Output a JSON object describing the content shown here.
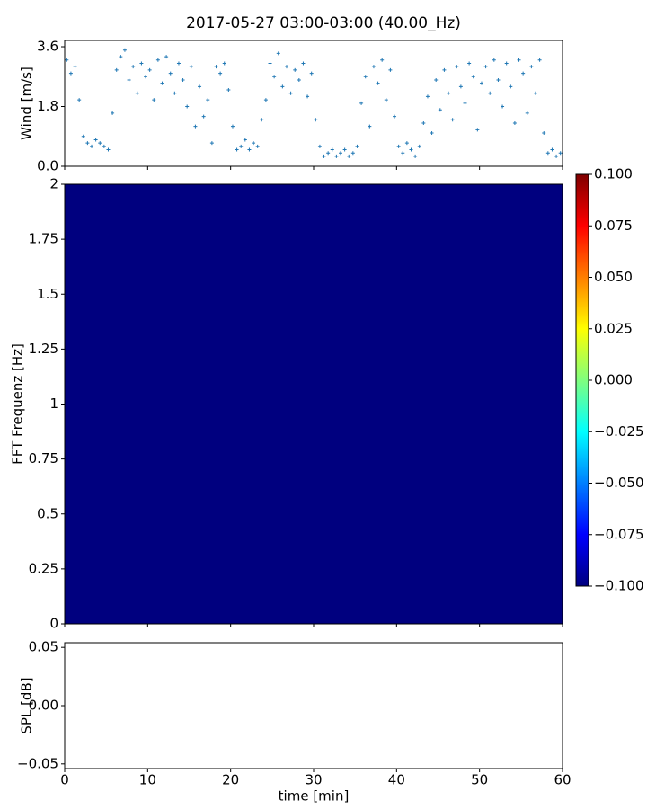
{
  "title": "2017-05-27 03:00-03:00 (40.00_Hz)",
  "chart_data": [
    {
      "type": "scatter",
      "ylabel": "Wind [m/s]",
      "color": "#1f77b4",
      "xlim": [
        0,
        60
      ],
      "ylim": [
        0,
        3.79
      ],
      "yticks": [
        {
          "value": 0,
          "label": "0.0"
        },
        1.8,
        3.6
      ],
      "x": [
        0.25,
        0.75,
        1.25,
        1.75,
        2.25,
        2.75,
        3.25,
        3.75,
        4.25,
        4.75,
        5.25,
        5.75,
        6.25,
        6.75,
        7.25,
        7.75,
        8.25,
        8.75,
        9.25,
        9.75,
        10.25,
        10.75,
        11.25,
        11.75,
        12.25,
        12.75,
        13.25,
        13.75,
        14.25,
        14.75,
        15.25,
        15.75,
        16.25,
        16.75,
        17.25,
        17.75,
        18.25,
        18.75,
        19.25,
        19.75,
        20.25,
        20.75,
        21.25,
        21.75,
        22.25,
        22.75,
        23.25,
        23.75,
        24.25,
        24.75,
        25.25,
        25.75,
        26.25,
        26.75,
        27.25,
        27.75,
        28.25,
        28.75,
        29.25,
        29.75,
        30.25,
        30.75,
        31.25,
        31.75,
        32.25,
        32.75,
        33.25,
        33.75,
        34.25,
        34.75,
        35.25,
        35.75,
        36.25,
        36.75,
        37.25,
        37.75,
        38.25,
        38.75,
        39.25,
        39.75,
        40.25,
        40.75,
        41.25,
        41.75,
        42.25,
        42.75,
        43.25,
        43.75,
        44.25,
        44.75,
        45.25,
        45.75,
        46.25,
        46.75,
        47.25,
        47.75,
        48.25,
        48.75,
        49.25,
        49.75,
        50.25,
        50.75,
        51.25,
        51.75,
        52.25,
        52.75,
        53.25,
        53.75,
        54.25,
        54.75,
        55.25,
        55.75,
        56.25,
        56.75,
        57.25,
        57.75,
        58.25,
        58.75,
        59.25,
        59.75
      ],
      "y": [
        3.2,
        2.8,
        3.0,
        2.0,
        0.9,
        0.7,
        0.6,
        0.8,
        0.7,
        0.6,
        0.5,
        1.6,
        2.9,
        3.3,
        3.5,
        2.6,
        3.0,
        2.2,
        3.1,
        2.7,
        2.9,
        2.0,
        3.2,
        2.5,
        3.3,
        2.8,
        2.2,
        3.1,
        2.6,
        1.8,
        3.0,
        1.2,
        2.4,
        1.5,
        2.0,
        0.7,
        3.0,
        2.8,
        3.1,
        2.3,
        1.2,
        0.5,
        0.6,
        0.8,
        0.5,
        0.7,
        0.6,
        1.4,
        2.0,
        3.1,
        2.7,
        3.4,
        2.4,
        3.0,
        2.2,
        2.9,
        2.6,
        3.1,
        2.1,
        2.8,
        1.4,
        0.6,
        0.3,
        0.4,
        0.5,
        0.3,
        0.4,
        0.5,
        0.3,
        0.4,
        0.6,
        1.9,
        2.7,
        1.2,
        3.0,
        2.5,
        3.2,
        2.0,
        2.9,
        1.5,
        0.6,
        0.4,
        0.7,
        0.5,
        0.3,
        0.6,
        1.3,
        2.1,
        1.0,
        2.6,
        1.7,
        2.9,
        2.2,
        1.4,
        3.0,
        2.4,
        1.9,
        3.1,
        2.7,
        1.1,
        2.5,
        3.0,
        2.2,
        3.2,
        2.6,
        1.8,
        3.1,
        2.4,
        1.3,
        3.2,
        2.8,
        1.6,
        3.0,
        2.2,
        3.2,
        1.0,
        0.4,
        0.5,
        0.3,
        0.4
      ]
    },
    {
      "type": "heatmap",
      "ylabel": "FFT Frequenz [Hz]",
      "color": "#00007f",
      "xlim": [
        0,
        60
      ],
      "ylim": [
        0,
        2
      ],
      "yticks": [
        0,
        0.25,
        0.5,
        0.75,
        1,
        1.25,
        1.5,
        1.75,
        2
      ],
      "colorbar": {
        "colormap": "jet",
        "lim": [
          -0.1,
          0.1
        ],
        "ticks": [
          {
            "value": 0.1,
            "label": "0.100"
          },
          {
            "value": 0.075,
            "label": "0.075"
          },
          {
            "value": 0.05,
            "label": "0.050"
          },
          {
            "value": 0.025,
            "label": "0.025"
          },
          {
            "value": 0,
            "label": "0.000"
          },
          {
            "value": -0.025,
            "label": "−0.025"
          },
          {
            "value": -0.05,
            "label": "−0.050"
          },
          {
            "value": -0.075,
            "label": "−0.075"
          },
          {
            "value": -0.1,
            "label": "−0.100"
          }
        ]
      }
    },
    {
      "type": "line",
      "ylabel": "SPL [dB]",
      "xlabel": "time [min]",
      "xlim": [
        0,
        60
      ],
      "ylim": [
        -0.054,
        0.054
      ],
      "xticks": [
        0,
        10,
        20,
        30,
        40,
        50,
        60
      ],
      "yticks": [
        {
          "value": -0.05,
          "label": "−0.05"
        },
        {
          "value": 0,
          "label": "0.00"
        },
        {
          "value": 0.05,
          "label": "0.05"
        }
      ]
    }
  ]
}
